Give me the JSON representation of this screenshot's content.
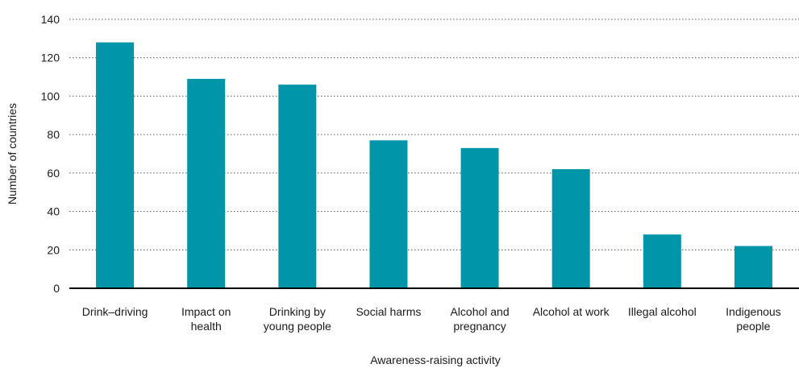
{
  "colors": {
    "bar": "#0095a8",
    "axis": "#000000",
    "grid": "#555555",
    "text": "#1a1a1a"
  },
  "chart_data": {
    "type": "bar",
    "title": "",
    "xlabel": "Awareness-raising activity",
    "ylabel": "Number of countries",
    "ylim": [
      0,
      140
    ],
    "yticks": [
      0,
      20,
      40,
      60,
      80,
      100,
      120,
      140
    ],
    "grid": true,
    "categories": [
      [
        "Drink–driving"
      ],
      [
        "Impact on",
        "health"
      ],
      [
        "Drinking by",
        "young people"
      ],
      [
        "Social harms"
      ],
      [
        "Alcohol and",
        "pregnancy"
      ],
      [
        "Alcohol at work"
      ],
      [
        "Illegal alcohol"
      ],
      [
        "Indigenous",
        "people"
      ]
    ],
    "values": [
      128,
      109,
      106,
      77,
      73,
      62,
      28,
      22
    ]
  }
}
